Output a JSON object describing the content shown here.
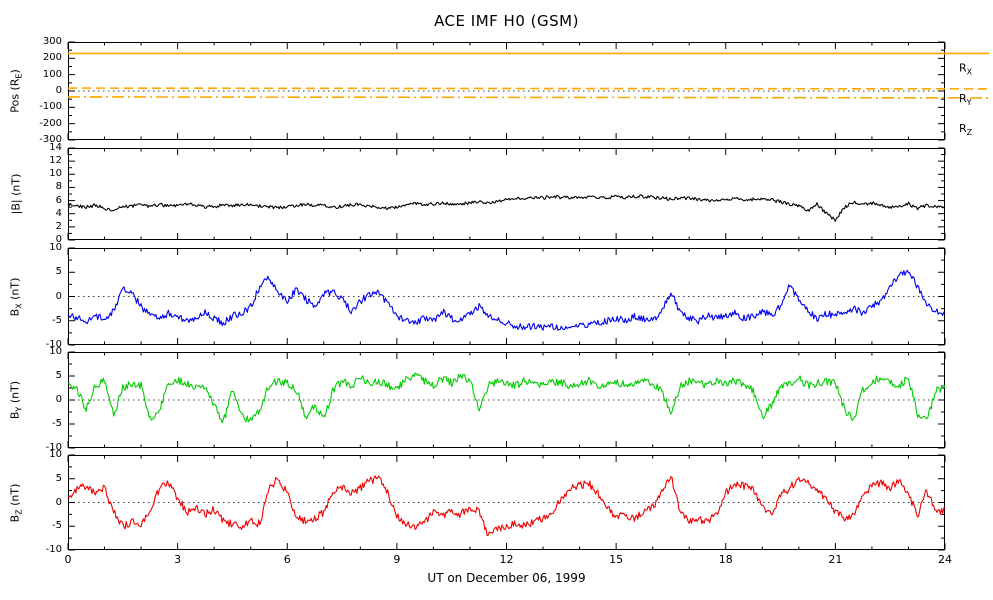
{
  "title": "ACE IMF H0 (GSM)",
  "xlabel": "UT on December 06, 1999",
  "x_range": [
    0,
    24
  ],
  "x_ticks": [
    0,
    3,
    6,
    9,
    12,
    15,
    18,
    21,
    24
  ],
  "colors": {
    "position_lines": "#FFA500",
    "bmag": "#000000",
    "bx": "#0000EE",
    "by": "#00CC00",
    "bz": "#EE0000",
    "axis": "#000000",
    "background": "#FFFFFF"
  },
  "chart_data": [
    {
      "id": "pos",
      "type": "line",
      "ylabel": {
        "pre": "Pos (R",
        "sub": "E",
        "post": ")"
      },
      "ylim": [
        -300,
        300
      ],
      "yticks": [
        300,
        200,
        100,
        0,
        -100,
        -200,
        -300
      ],
      "zero_line": true,
      "extend_right": true,
      "series": [
        {
          "name": "R_X",
          "color": "#FFA500",
          "dash": "solid",
          "jitter": 0,
          "values": [
            230,
            230
          ]
        },
        {
          "name": "R_Y",
          "color": "#FFA500",
          "dash": "dashed",
          "jitter": 0,
          "values": [
            18,
            13
          ]
        },
        {
          "name": "R_Z",
          "color": "#FFA500",
          "dash": "dashdot",
          "jitter": 0,
          "values": [
            -36,
            -42
          ]
        }
      ],
      "legend": [
        {
          "pre": "R",
          "sub": "X",
          "dash": "solid"
        },
        {
          "pre": "R",
          "sub": "Y",
          "dash": "dashed"
        },
        {
          "pre": "R",
          "sub": "Z",
          "dash": "dashdot"
        }
      ]
    },
    {
      "id": "bmag",
      "type": "line",
      "ylabel": {
        "pre": "|B| (nT)",
        "sub": "",
        "post": ""
      },
      "ylim": [
        0,
        14
      ],
      "yticks": [
        14,
        12,
        10,
        8,
        6,
        4,
        2,
        0
      ],
      "zero_line": false,
      "series": [
        {
          "name": "Bmag",
          "color": "#000000",
          "dash": "solid",
          "jitter": 0.25,
          "values": [
            5.5,
            5.2,
            5.0,
            5.3,
            4.8,
            4.6,
            5.0,
            5.2,
            5.3,
            5.1,
            5.4,
            5.2,
            5.3,
            5.5,
            5.2,
            5.0,
            5.1,
            5.3,
            5.2,
            5.4,
            5.3,
            5.2,
            5.0,
            4.9,
            5.0,
            5.2,
            5.4,
            5.3,
            5.2,
            5.0,
            5.1,
            5.3,
            5.4,
            5.2,
            5.0,
            4.8,
            5.0,
            5.3,
            5.5,
            5.4,
            5.5,
            5.6,
            5.4,
            5.5,
            5.6,
            5.8,
            5.7,
            5.9,
            6.2,
            6.4,
            6.3,
            6.5,
            6.4,
            6.6,
            6.5,
            6.4,
            6.5,
            6.6,
            6.4,
            6.5,
            6.6,
            6.5,
            6.7,
            6.6,
            6.5,
            6.4,
            6.2,
            6.3,
            6.4,
            6.2,
            6.0,
            6.1,
            6.2,
            6.3,
            6.1,
            6.2,
            6.3,
            6.1,
            5.8,
            5.5,
            5.2,
            4.5,
            5.5,
            4.0,
            3.0,
            5.0,
            5.8,
            5.5,
            5.6,
            5.4,
            5.0,
            5.2,
            5.5,
            4.8,
            5.3,
            5.0,
            4.9
          ]
        }
      ]
    },
    {
      "id": "bx",
      "type": "line",
      "ylabel": {
        "pre": "B",
        "sub": "X",
        "post": " (nT)"
      },
      "ylim": [
        -10,
        10
      ],
      "yticks": [
        10,
        5,
        0,
        -5,
        -10
      ],
      "zero_line": true,
      "series": [
        {
          "name": "Bx",
          "color": "#0000EE",
          "dash": "solid",
          "jitter": 0.7,
          "values": [
            -3.5,
            -4.5,
            -5.0,
            -4.0,
            -4.5,
            -3.0,
            1.5,
            0.5,
            -2.0,
            -4.0,
            -4.5,
            -3.5,
            -4.0,
            -5.0,
            -4.5,
            -3.0,
            -4.5,
            -5.5,
            -4.0,
            -3.5,
            -2.0,
            2.0,
            4.0,
            1.0,
            -1.0,
            1.5,
            -0.5,
            -2.0,
            0.5,
            1.0,
            -0.5,
            -3.0,
            -1.0,
            0.5,
            1.0,
            -1.5,
            -4.0,
            -5.0,
            -5.5,
            -4.5,
            -5.0,
            -3.0,
            -4.5,
            -5.0,
            -3.5,
            -2.0,
            -4.0,
            -5.0,
            -5.5,
            -6.0,
            -6.5,
            -6.0,
            -6.5,
            -6.0,
            -6.5,
            -6.0,
            -5.5,
            -6.0,
            -5.5,
            -5.0,
            -4.5,
            -5.0,
            -4.0,
            -4.5,
            -5.0,
            -3.0,
            1.0,
            -3.5,
            -4.5,
            -5.0,
            -4.0,
            -4.5,
            -4.0,
            -3.5,
            -4.5,
            -4.0,
            -3.0,
            -4.0,
            -2.0,
            2.5,
            -1.0,
            -3.0,
            -4.5,
            -3.5,
            -4.0,
            -3.0,
            -2.5,
            -3.5,
            -2.0,
            -1.0,
            2.0,
            4.5,
            5.0,
            2.0,
            -1.5,
            -3.0,
            -3.5
          ]
        }
      ]
    },
    {
      "id": "by",
      "type": "line",
      "ylabel": {
        "pre": "B",
        "sub": "Y",
        "post": " (nT)"
      },
      "ylim": [
        -10,
        10
      ],
      "yticks": [
        10,
        5,
        0,
        -5,
        -10
      ],
      "zero_line": true,
      "series": [
        {
          "name": "By",
          "color": "#00CC00",
          "dash": "solid",
          "jitter": 0.8,
          "values": [
            3.5,
            2.0,
            -2.0,
            3.0,
            4.0,
            -3.0,
            2.5,
            3.5,
            3.0,
            -4.0,
            -2.0,
            3.0,
            4.0,
            3.5,
            2.5,
            3.0,
            -1.0,
            -4.5,
            2.0,
            -3.5,
            -4.0,
            -2.0,
            3.0,
            4.0,
            3.5,
            2.0,
            -3.5,
            -1.0,
            -4.0,
            2.0,
            4.0,
            3.0,
            4.5,
            3.5,
            4.0,
            3.0,
            2.0,
            4.5,
            5.0,
            4.0,
            3.0,
            4.5,
            3.5,
            5.0,
            4.0,
            -2.0,
            3.0,
            4.0,
            3.5,
            3.0,
            4.0,
            3.5,
            3.0,
            4.0,
            3.5,
            3.0,
            3.5,
            4.0,
            3.0,
            3.5,
            4.0,
            3.0,
            3.5,
            4.0,
            3.5,
            2.0,
            -3.0,
            3.0,
            4.0,
            3.5,
            3.0,
            4.0,
            3.5,
            4.0,
            3.0,
            2.0,
            -3.5,
            -1.0,
            3.0,
            3.5,
            4.5,
            3.0,
            3.5,
            4.0,
            3.5,
            -2.0,
            -4.0,
            2.0,
            4.0,
            4.5,
            3.5,
            3.0,
            4.5,
            -3.0,
            -4.5,
            2.0,
            2.5
          ]
        }
      ]
    },
    {
      "id": "bz",
      "type": "line",
      "ylabel": {
        "pre": "B",
        "sub": "Z",
        "post": " (nT)"
      },
      "ylim": [
        -10,
        10
      ],
      "yticks": [
        10,
        5,
        0,
        -5,
        -10
      ],
      "zero_line": true,
      "series": [
        {
          "name": "Bz",
          "color": "#EE0000",
          "dash": "solid",
          "jitter": 0.8,
          "values": [
            1.0,
            3.0,
            3.5,
            2.0,
            3.0,
            -2.0,
            -5.0,
            -4.0,
            -4.5,
            -2.0,
            3.0,
            4.0,
            1.0,
            -2.0,
            -1.0,
            -2.5,
            -1.5,
            -4.0,
            -4.5,
            -5.0,
            -4.0,
            -4.5,
            3.0,
            5.0,
            2.0,
            -3.0,
            -4.0,
            -3.5,
            -2.0,
            2.5,
            3.0,
            2.0,
            3.0,
            4.5,
            5.0,
            2.0,
            -3.0,
            -4.5,
            -5.0,
            -4.0,
            -2.0,
            -3.0,
            -1.5,
            -2.5,
            -1.0,
            -2.0,
            -7.0,
            -5.5,
            -5.0,
            -4.5,
            -5.0,
            -4.0,
            -3.5,
            -2.0,
            1.0,
            3.0,
            3.5,
            4.0,
            2.0,
            -1.0,
            -3.0,
            -2.5,
            -3.5,
            -2.0,
            -1.0,
            2.0,
            6.0,
            -2.0,
            -4.0,
            -3.5,
            -4.0,
            -2.5,
            2.0,
            4.0,
            3.5,
            2.5,
            -1.0,
            -2.5,
            1.5,
            3.0,
            5.0,
            4.0,
            2.5,
            1.0,
            -2.0,
            -3.5,
            -2.5,
            1.5,
            3.5,
            4.0,
            3.0,
            4.5,
            2.0,
            -3.0,
            2.5,
            -2.0,
            -1.5
          ]
        }
      ]
    }
  ]
}
